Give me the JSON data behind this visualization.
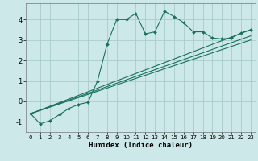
{
  "xlabel": "Humidex (Indice chaleur)",
  "bg_color": "#cce8e8",
  "grid_color": "#aacccc",
  "line_color": "#1a7060",
  "xlim": [
    -0.5,
    23.5
  ],
  "ylim": [
    -1.5,
    4.8
  ],
  "yticks": [
    -1,
    0,
    1,
    2,
    3,
    4
  ],
  "xticks": [
    0,
    1,
    2,
    3,
    4,
    5,
    6,
    7,
    8,
    9,
    10,
    11,
    12,
    13,
    14,
    15,
    16,
    17,
    18,
    19,
    20,
    21,
    22,
    23
  ],
  "series1_x": [
    0,
    1,
    2,
    3,
    4,
    5,
    6,
    7,
    8,
    9,
    10,
    11,
    12,
    13,
    14,
    15,
    16,
    17,
    18,
    19,
    20,
    21,
    22,
    23
  ],
  "series1_y": [
    -0.6,
    -1.1,
    -0.95,
    -0.65,
    -0.35,
    -0.15,
    -0.05,
    1.0,
    2.8,
    4.0,
    4.0,
    4.3,
    3.3,
    3.4,
    4.4,
    4.15,
    3.85,
    3.4,
    3.4,
    3.1,
    3.05,
    3.1,
    3.35,
    3.5
  ],
  "line2_x": [
    0,
    23
  ],
  "line2_y": [
    -0.6,
    3.5
  ],
  "line3_x": [
    0,
    23
  ],
  "line3_y": [
    -0.6,
    3.2
  ],
  "line4_x": [
    0,
    23
  ],
  "line4_y": [
    -0.6,
    3.0
  ]
}
